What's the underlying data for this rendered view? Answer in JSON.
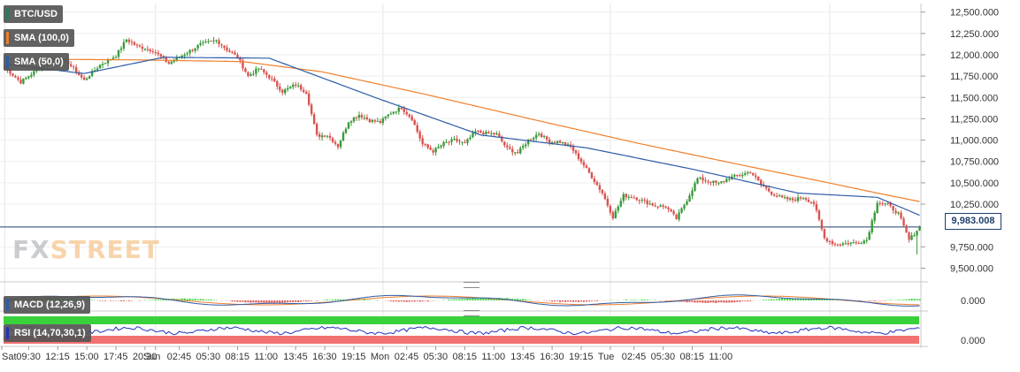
{
  "indicators": {
    "symbol": "BTC/USD",
    "sma_slow": "SMA (100,0)",
    "sma_fast": "SMA (50,0)",
    "macd": "MACD (12,26,9)",
    "rsi": "RSI (14,70,30,1)"
  },
  "current_price_label": "9,983.008",
  "watermark": {
    "part1": "FX",
    "part2": "STREET"
  },
  "colors": {
    "bull": "#3a9a3a",
    "bear": "#d9534f",
    "sma_slow": "#f07f2b",
    "sma_fast": "#2d5da8",
    "price_line": "#1f3d6b",
    "rsi_overbought": "#39d139",
    "rsi_oversold": "#f27272",
    "rsi_line": "#2233bb",
    "macd_line": "#2d5da8",
    "macd_signal": "#f07f2b"
  },
  "chart_data": {
    "type": "candlestick",
    "y_ticks": [
      "12,500.000",
      "12,250.000",
      "12,000.000",
      "11,750.000",
      "11,500.000",
      "11,250.000",
      "11,000.000",
      "10,750.000",
      "10,500.000",
      "10,250.000",
      "9,750.000",
      "9,500.000"
    ],
    "y_tick_values": [
      12500,
      12250,
      12000,
      11750,
      11500,
      11250,
      11000,
      10750,
      10500,
      10250,
      9750,
      9500
    ],
    "ylim": [
      9350,
      12600
    ],
    "x_tick_labels": [
      "Sat",
      "09:30",
      "12:15",
      "15:00",
      "17:45",
      "20:30",
      "Sun",
      "02:45",
      "05:30",
      "08:15",
      "11:00",
      "13:45",
      "16:30",
      "19:15",
      "Mon",
      "02:45",
      "05:30",
      "08:15",
      "11:00",
      "13:45",
      "16:30",
      "19:15",
      "Tue",
      "02:45",
      "05:30",
      "08:15",
      "11:00"
    ],
    "current_price": 9983.008,
    "close_anchors": [
      [
        0,
        11850
      ],
      [
        6,
        11680
      ],
      [
        12,
        11820
      ],
      [
        18,
        11950
      ],
      [
        24,
        11900
      ],
      [
        30,
        11700
      ],
      [
        36,
        11880
      ],
      [
        42,
        11990
      ],
      [
        46,
        12180
      ],
      [
        50,
        12100
      ],
      [
        56,
        12050
      ],
      [
        62,
        11900
      ],
      [
        68,
        12010
      ],
      [
        74,
        12120
      ],
      [
        80,
        12170
      ],
      [
        84,
        12060
      ],
      [
        88,
        11970
      ],
      [
        92,
        11750
      ],
      [
        96,
        11840
      ],
      [
        100,
        11740
      ],
      [
        105,
        11570
      ],
      [
        110,
        11650
      ],
      [
        114,
        11560
      ],
      [
        118,
        11050
      ],
      [
        122,
        11060
      ],
      [
        126,
        10930
      ],
      [
        130,
        11220
      ],
      [
        134,
        11300
      ],
      [
        138,
        11230
      ],
      [
        142,
        11210
      ],
      [
        146,
        11320
      ],
      [
        150,
        11380
      ],
      [
        154,
        11250
      ],
      [
        158,
        10950
      ],
      [
        162,
        10870
      ],
      [
        166,
        10960
      ],
      [
        170,
        11000
      ],
      [
        174,
        10960
      ],
      [
        178,
        11100
      ],
      [
        182,
        11080
      ],
      [
        186,
        11070
      ],
      [
        190,
        10900
      ],
      [
        194,
        10850
      ],
      [
        198,
        11000
      ],
      [
        202,
        11080
      ],
      [
        206,
        10980
      ],
      [
        210,
        10980
      ],
      [
        214,
        10920
      ],
      [
        218,
        10750
      ],
      [
        222,
        10570
      ],
      [
        226,
        10380
      ],
      [
        230,
        10100
      ],
      [
        234,
        10350
      ],
      [
        238,
        10330
      ],
      [
        242,
        10280
      ],
      [
        246,
        10230
      ],
      [
        250,
        10220
      ],
      [
        254,
        10080
      ],
      [
        258,
        10300
      ],
      [
        262,
        10550
      ],
      [
        266,
        10520
      ],
      [
        270,
        10490
      ],
      [
        274,
        10560
      ],
      [
        278,
        10590
      ],
      [
        282,
        10630
      ],
      [
        286,
        10480
      ],
      [
        290,
        10380
      ],
      [
        294,
        10320
      ],
      [
        298,
        10300
      ],
      [
        302,
        10330
      ],
      [
        306,
        10260
      ],
      [
        310,
        9850
      ],
      [
        314,
        9780
      ],
      [
        318,
        9790
      ],
      [
        322,
        9800
      ],
      [
        326,
        9830
      ],
      [
        330,
        10280
      ],
      [
        334,
        10240
      ],
      [
        338,
        10140
      ],
      [
        342,
        9830
      ],
      [
        346,
        9983
      ]
    ],
    "sma_fast_anchors": [
      [
        0,
        11890
      ],
      [
        30,
        11780
      ],
      [
        60,
        11970
      ],
      [
        100,
        11960
      ],
      [
        140,
        11500
      ],
      [
        180,
        11060
      ],
      [
        220,
        10910
      ],
      [
        260,
        10660
      ],
      [
        300,
        10380
      ],
      [
        330,
        10330
      ],
      [
        346,
        10120
      ]
    ],
    "sma_slow_anchors": [
      [
        0,
        11950
      ],
      [
        50,
        11940
      ],
      [
        90,
        11920
      ],
      [
        120,
        11800
      ],
      [
        160,
        11530
      ],
      [
        200,
        11240
      ],
      [
        240,
        10960
      ],
      [
        280,
        10700
      ],
      [
        310,
        10510
      ],
      [
        330,
        10380
      ],
      [
        346,
        10280
      ]
    ],
    "macd": {
      "ylabel": "0.000"
    },
    "rsi": {
      "ylabel": "0.000"
    }
  }
}
